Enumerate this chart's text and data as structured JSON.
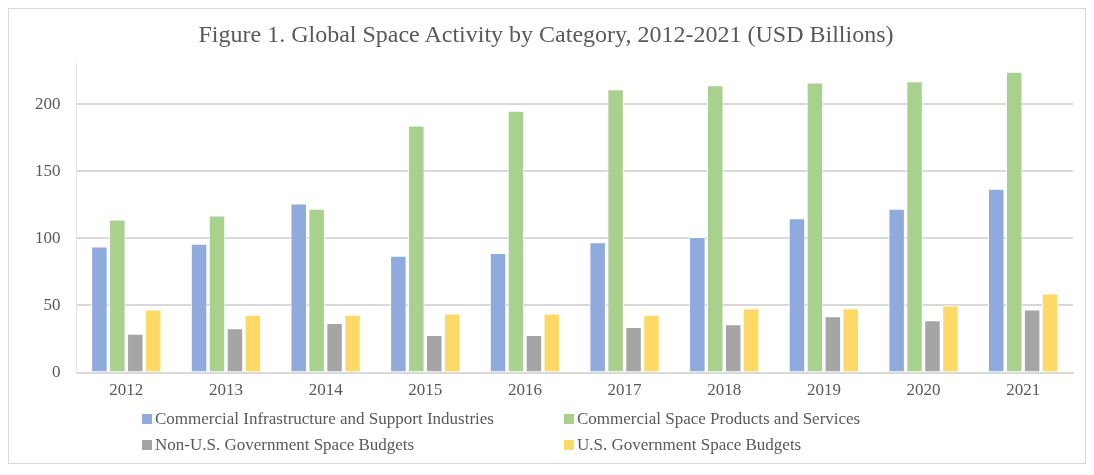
{
  "chart_data": {
    "type": "bar",
    "title": "Figure 1. Global Space Activity by Category, 2012-2021 (USD Billions)",
    "categories": [
      "2012",
      "2013",
      "2014",
      "2015",
      "2016",
      "2017",
      "2018",
      "2019",
      "2020",
      "2021"
    ],
    "series": [
      {
        "name": "Commercial Infrastructure and Support Industries",
        "color": "#8faadc",
        "values": [
          94,
          96,
          126,
          87,
          89,
          97,
          101,
          115,
          122,
          137
        ]
      },
      {
        "name": "Commercial Space Products and Services",
        "color": "#a9d18e",
        "values": [
          114,
          117,
          122,
          184,
          195,
          211,
          214,
          216,
          217,
          224
        ]
      },
      {
        "name": "Non-U.S. Government Space Budgets",
        "color": "#a5a5a5",
        "values": [
          29,
          33,
          37,
          28,
          28,
          34,
          36,
          42,
          39,
          47
        ]
      },
      {
        "name": "U.S. Government Space Budgets",
        "color": "#ffd966",
        "values": [
          47,
          43,
          43,
          44,
          44,
          43,
          48,
          48,
          50,
          59
        ]
      }
    ],
    "ylim": [
      0,
      230
    ],
    "yticks": [
      0,
      50,
      100,
      150,
      200
    ],
    "grid": "y",
    "legend": "bottom"
  }
}
